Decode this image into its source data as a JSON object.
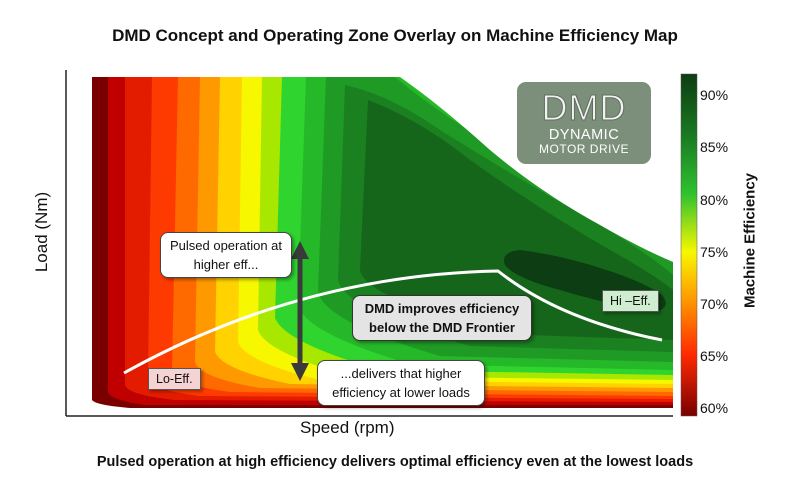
{
  "title": "DMD Concept and Operating Zone Overlay on Machine Efficiency Map",
  "caption": "Pulsed operation at high efficiency delivers optimal efficiency even at the lowest loads",
  "axes": {
    "x_label": "Speed (rpm)",
    "y_label": "Load (Nm)"
  },
  "colorbar": {
    "label": "Machine Efficiency",
    "ticks": [
      "90%",
      "85%",
      "80%",
      "75%",
      "70%",
      "65%",
      "60%"
    ],
    "colors": [
      "#0d3d12",
      "#1a7a22",
      "#2fc22f",
      "#f7f700",
      "#ff9900",
      "#ff2a00",
      "#7a0000"
    ]
  },
  "logo": {
    "line1": "DMD",
    "line2": "DYNAMIC",
    "line3": "MOTOR DRIVE"
  },
  "callouts": {
    "pulsed": "Pulsed operation at higher eff...",
    "delivers": "...delivers that higher efficiency at lower loads",
    "frontier": "DMD improves efficiency below the DMD Frontier"
  },
  "tags": {
    "lo": "Lo-Eff.",
    "hi": "Hi –Eff."
  }
}
